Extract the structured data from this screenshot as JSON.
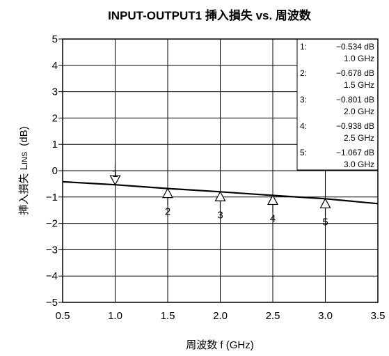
{
  "chart_data": {
    "type": "line",
    "title": "INPUT-OUTPUT1  挿入損失  vs. 周波数",
    "xlabel": "周波数  f (GHz)",
    "ylabel_main": "挿入損失  L",
    "ylabel_sub": "INS",
    "ylabel_unit": "(dB)",
    "xlim": [
      0.5,
      3.5
    ],
    "ylim": [
      -5,
      5
    ],
    "xticks": [
      "0.5",
      "1.0",
      "1.5",
      "2.0",
      "2.5",
      "3.0",
      "3.5"
    ],
    "yticks": [
      "5",
      "4",
      "3",
      "2",
      "1",
      "0",
      "−1",
      "−2",
      "−3",
      "−4",
      "−5"
    ],
    "grid": true,
    "series": [
      {
        "x": [
          0.5,
          1.0,
          1.5,
          2.0,
          2.5,
          3.0,
          3.5
        ],
        "y": [
          -0.42,
          -0.534,
          -0.678,
          -0.801,
          -0.938,
          -1.067,
          -1.25
        ]
      }
    ],
    "markers": [
      {
        "id": "1",
        "x": 1.0,
        "y": -0.534,
        "value": "−0.534 dB",
        "freq": "1.0 GHz"
      },
      {
        "id": "2",
        "x": 1.5,
        "y": -0.678,
        "value": "−0.678 dB",
        "freq": "1.5 GHz"
      },
      {
        "id": "3",
        "x": 2.0,
        "y": -0.801,
        "value": "−0.801 dB",
        "freq": "2.0 GHz"
      },
      {
        "id": "4",
        "x": 2.5,
        "y": -0.938,
        "value": "−0.938 dB",
        "freq": "2.5 GHz"
      },
      {
        "id": "5",
        "x": 3.0,
        "y": -1.067,
        "value": "−1.067 dB",
        "freq": "3.0 GHz"
      }
    ],
    "marker_table_placement": "top-right",
    "line_color": "#000000"
  }
}
